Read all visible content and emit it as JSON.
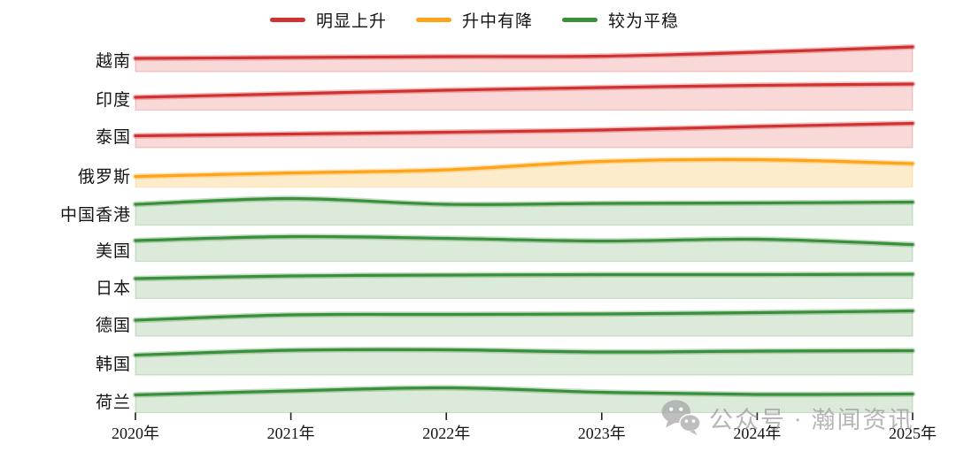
{
  "chart_data": {
    "type": "area",
    "subtype": "ridgeline",
    "title": "",
    "x_labels": [
      "2020年",
      "2021年",
      "2022年",
      "2023年",
      "2024年",
      "2025年"
    ],
    "x_values": [
      2020,
      2021,
      2022,
      2023,
      2024,
      2025
    ],
    "y_axis_visible": false,
    "units": "relative height (no y scale shown)",
    "grid": false,
    "legend_position": "top-center",
    "legend": [
      {
        "key": "rising",
        "label": "明显上升",
        "line_color": "#cf3231",
        "fill_color": "#f8d9d7"
      },
      {
        "key": "rise-then-fall",
        "label": "升中有降",
        "line_color": "#ffa318",
        "fill_color": "#fdeccb"
      },
      {
        "key": "stable",
        "label": "较为平稳",
        "line_color": "#3a8f3c",
        "fill_color": "#dcead9"
      }
    ],
    "series": [
      {
        "id": "vietnam",
        "name": "越南",
        "group": "rising",
        "values": [
          15,
          16,
          17,
          17.5,
          22,
          28
        ]
      },
      {
        "id": "india",
        "name": "印度",
        "group": "rising",
        "values": [
          14.5,
          18.5,
          22.5,
          25.5,
          28,
          29.5
        ]
      },
      {
        "id": "thailand",
        "name": "泰国",
        "group": "rising",
        "values": [
          13.5,
          15.5,
          17.5,
          20,
          24,
          27.5
        ]
      },
      {
        "id": "russia",
        "name": "俄罗斯",
        "group": "rise-then-fall",
        "values": [
          12,
          16,
          19.5,
          29,
          31,
          26.5
        ]
      },
      {
        "id": "hong-kong",
        "name": "中国香港",
        "group": "stable",
        "values": [
          23.5,
          30,
          23.5,
          24.5,
          25,
          26
        ]
      },
      {
        "id": "usa",
        "name": "美国",
        "group": "stable",
        "values": [
          23.5,
          28,
          26,
          23,
          25,
          19
        ]
      },
      {
        "id": "japan",
        "name": "日本",
        "group": "stable",
        "values": [
          22.5,
          25.5,
          26.5,
          27,
          27,
          27.5
        ]
      },
      {
        "id": "germany",
        "name": "德国",
        "group": "stable",
        "values": [
          18,
          24,
          24.5,
          25,
          26.5,
          28.5
        ]
      },
      {
        "id": "south-korea",
        "name": "韩国",
        "group": "stable",
        "values": [
          22.5,
          28,
          28.5,
          26,
          27,
          27.5
        ]
      },
      {
        "id": "netherlands",
        "name": "荷兰",
        "group": "stable",
        "values": [
          20,
          24.5,
          28,
          23,
          20.5,
          21
        ]
      }
    ]
  },
  "watermark": {
    "text": "公众号 · 瀚闻资讯",
    "icon": "wechat-icon",
    "color": "#9b9b9b"
  },
  "colors": {
    "background": "#ffffff",
    "text": "#141414",
    "tick": "#222222"
  }
}
